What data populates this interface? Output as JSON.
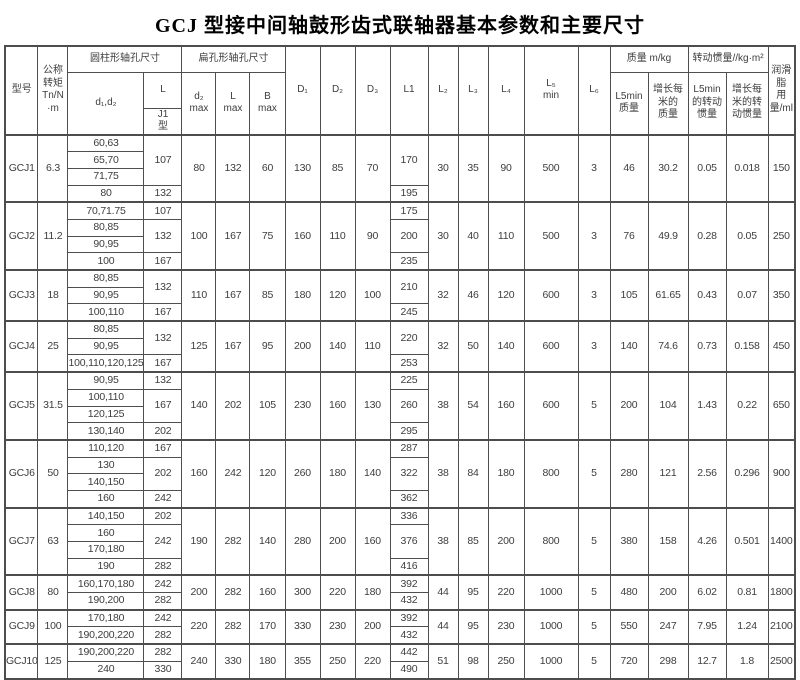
{
  "title": "GCJ 型接中间轴鼓形齿式联轴器基本参数和主要尺寸",
  "table": {
    "header": {
      "model": "型号",
      "torque": "公称\n转矩\nTn/N\n·m",
      "cyl_group": "圆柱形轴孔尺寸",
      "flat_group": "扁孔形轴孔尺寸",
      "d1d2": "d₁,d₂",
      "L": "L",
      "J1": "J1\n型",
      "d2max": "d₂\nmax",
      "Lmax": "L\nmax",
      "Bmax": "B\nmax",
      "D1": "D₁",
      "D2": "D₂",
      "D3": "D₃",
      "L1": "L1",
      "L2": "L₂",
      "L3": "L₃",
      "L4": "L₄",
      "L5min": "L₅\nmin",
      "L6": "L₆",
      "mass_group": "质量 m/kg",
      "inertia_group": "转动惯量//kg·m²",
      "mass_L5min": "L5min\n质量",
      "mass_per_m": "增长每\n米的\n质量",
      "inertia_L5min": "L5min\n的转动\n惯量",
      "inertia_per_m": "增长每\n米的转\n动惯量",
      "grease": "润滑脂\n用量/ml"
    },
    "groups": [
      {
        "model": "GCJ1",
        "torque": "6.3",
        "bore_rows": [
          {
            "d": "60,63"
          },
          {
            "d": "65,70"
          },
          {
            "d": "71,75"
          },
          {
            "d": "80"
          }
        ],
        "L_spans": [
          {
            "v": "107",
            "r": 3
          },
          {
            "v": "132",
            "r": 1
          }
        ],
        "L1_spans": [
          {
            "v": "170",
            "r": 3
          },
          {
            "v": "195",
            "r": 1
          }
        ],
        "merged": {
          "d2max": "80",
          "Lmax": "132",
          "Bmax": "60",
          "D1": "130",
          "D2": "85",
          "D3": "70",
          "L2": "30",
          "L3": "35",
          "L4": "90",
          "L5min": "500",
          "L6": "3",
          "mass_L5min": "46",
          "mass_per_m": "30.2",
          "inertia_L5min": "0.05",
          "inertia_per_m": "0.018",
          "grease": "150"
        }
      },
      {
        "model": "GCJ2",
        "torque": "11.2",
        "bore_rows": [
          {
            "d": "70,71.75"
          },
          {
            "d": "80,85"
          },
          {
            "d": "90,95"
          },
          {
            "d": "100"
          }
        ],
        "L_spans": [
          {
            "v": "107",
            "r": 1
          },
          {
            "v": "132",
            "r": 2
          },
          {
            "v": "167",
            "r": 1
          }
        ],
        "L1_spans": [
          {
            "v": "175",
            "r": 1
          },
          {
            "v": "200",
            "r": 2
          },
          {
            "v": "235",
            "r": 1
          }
        ],
        "merged": {
          "d2max": "100",
          "Lmax": "167",
          "Bmax": "75",
          "D1": "160",
          "D2": "110",
          "D3": "90",
          "L2": "30",
          "L3": "40",
          "L4": "110",
          "L5min": "500",
          "L6": "3",
          "mass_L5min": "76",
          "mass_per_m": "49.9",
          "inertia_L5min": "0.28",
          "inertia_per_m": "0.05",
          "grease": "250"
        }
      },
      {
        "model": "GCJ3",
        "torque": "18",
        "bore_rows": [
          {
            "d": "80,85"
          },
          {
            "d": "90,95"
          },
          {
            "d": "100,110"
          }
        ],
        "L_spans": [
          {
            "v": "132",
            "r": 2
          },
          {
            "v": "167",
            "r": 1
          }
        ],
        "L1_spans": [
          {
            "v": "210",
            "r": 2
          },
          {
            "v": "245",
            "r": 1
          }
        ],
        "merged": {
          "d2max": "110",
          "Lmax": "167",
          "Bmax": "85",
          "D1": "180",
          "D2": "120",
          "D3": "100",
          "L2": "32",
          "L3": "46",
          "L4": "120",
          "L5min": "600",
          "L6": "3",
          "mass_L5min": "105",
          "mass_per_m": "61.65",
          "inertia_L5min": "0.43",
          "inertia_per_m": "0.07",
          "grease": "350"
        }
      },
      {
        "model": "GCJ4",
        "torque": "25",
        "bore_rows": [
          {
            "d": "80,85"
          },
          {
            "d": "90,95"
          },
          {
            "d": "100,110,120,125"
          }
        ],
        "L_spans": [
          {
            "v": "132",
            "r": 2
          },
          {
            "v": "167",
            "r": 1
          }
        ],
        "L1_spans": [
          {
            "v": "220",
            "r": 2
          },
          {
            "v": "253",
            "r": 1
          }
        ],
        "merged": {
          "d2max": "125",
          "Lmax": "167",
          "Bmax": "95",
          "D1": "200",
          "D2": "140",
          "D3": "110",
          "L2": "32",
          "L3": "50",
          "L4": "140",
          "L5min": "600",
          "L6": "3",
          "mass_L5min": "140",
          "mass_per_m": "74.6",
          "inertia_L5min": "0.73",
          "inertia_per_m": "0.158",
          "grease": "450"
        }
      },
      {
        "model": "GCJ5",
        "torque": "31.5",
        "bore_rows": [
          {
            "d": "90,95"
          },
          {
            "d": "100,110"
          },
          {
            "d": "120,125"
          },
          {
            "d": "130,140"
          }
        ],
        "L_spans": [
          {
            "v": "132",
            "r": 1
          },
          {
            "v": "167",
            "r": 2
          },
          {
            "v": "202",
            "r": 1
          }
        ],
        "L1_spans": [
          {
            "v": "225",
            "r": 1
          },
          {
            "v": "260",
            "r": 2
          },
          {
            "v": "295",
            "r": 1
          }
        ],
        "merged": {
          "d2max": "140",
          "Lmax": "202",
          "Bmax": "105",
          "D1": "230",
          "D2": "160",
          "D3": "130",
          "L2": "38",
          "L3": "54",
          "L4": "160",
          "L5min": "600",
          "L6": "5",
          "mass_L5min": "200",
          "mass_per_m": "104",
          "inertia_L5min": "1.43",
          "inertia_per_m": "0.22",
          "grease": "650"
        }
      },
      {
        "model": "GCJ6",
        "torque": "50",
        "bore_rows": [
          {
            "d": "110,120"
          },
          {
            "d": "130"
          },
          {
            "d": "140,150"
          },
          {
            "d": "160"
          }
        ],
        "L_spans": [
          {
            "v": "167",
            "r": 1
          },
          {
            "v": "202",
            "r": 2
          },
          {
            "v": "242",
            "r": 1
          }
        ],
        "L1_spans": [
          {
            "v": "287",
            "r": 1
          },
          {
            "v": "322",
            "r": 2
          },
          {
            "v": "362",
            "r": 1
          }
        ],
        "merged": {
          "d2max": "160",
          "Lmax": "242",
          "Bmax": "120",
          "D1": "260",
          "D2": "180",
          "D3": "140",
          "L2": "38",
          "L3": "84",
          "L4": "180",
          "L5min": "800",
          "L6": "5",
          "mass_L5min": "280",
          "mass_per_m": "121",
          "inertia_L5min": "2.56",
          "inertia_per_m": "0.296",
          "grease": "900"
        }
      },
      {
        "model": "GCJ7",
        "torque": "63",
        "bore_rows": [
          {
            "d": "140,150"
          },
          {
            "d": "160"
          },
          {
            "d": "170,180"
          },
          {
            "d": "190"
          }
        ],
        "L_spans": [
          {
            "v": "202",
            "r": 1
          },
          {
            "v": "242",
            "r": 2
          },
          {
            "v": "282",
            "r": 1
          }
        ],
        "L1_spans": [
          {
            "v": "336",
            "r": 1
          },
          {
            "v": "376",
            "r": 2
          },
          {
            "v": "416",
            "r": 1
          }
        ],
        "merged": {
          "d2max": "190",
          "Lmax": "282",
          "Bmax": "140",
          "D1": "280",
          "D2": "200",
          "D3": "160",
          "L2": "38",
          "L3": "85",
          "L4": "200",
          "L5min": "800",
          "L6": "5",
          "mass_L5min": "380",
          "mass_per_m": "158",
          "inertia_L5min": "4.26",
          "inertia_per_m": "0.501",
          "grease": "1400"
        }
      },
      {
        "model": "GCJ8",
        "torque": "80",
        "bore_rows": [
          {
            "d": "160,170,180"
          },
          {
            "d": "190,200"
          }
        ],
        "L_spans": [
          {
            "v": "242",
            "r": 1
          },
          {
            "v": "282",
            "r": 1
          }
        ],
        "L1_spans": [
          {
            "v": "392",
            "r": 1
          },
          {
            "v": "432",
            "r": 1
          }
        ],
        "merged": {
          "d2max": "200",
          "Lmax": "282",
          "Bmax": "160",
          "D1": "300",
          "D2": "220",
          "D3": "180",
          "L2": "44",
          "L3": "95",
          "L4": "220",
          "L5min": "1000",
          "L6": "5",
          "mass_L5min": "480",
          "mass_per_m": "200",
          "inertia_L5min": "6.02",
          "inertia_per_m": "0.81",
          "grease": "1800"
        }
      },
      {
        "model": "GCJ9",
        "torque": "100",
        "bore_rows": [
          {
            "d": "170,180"
          },
          {
            "d": "190,200,220"
          }
        ],
        "L_spans": [
          {
            "v": "242",
            "r": 1
          },
          {
            "v": "282",
            "r": 1
          }
        ],
        "L1_spans": [
          {
            "v": "392",
            "r": 1
          },
          {
            "v": "432",
            "r": 1
          }
        ],
        "merged": {
          "d2max": "220",
          "Lmax": "282",
          "Bmax": "170",
          "D1": "330",
          "D2": "230",
          "D3": "200",
          "L2": "44",
          "L3": "95",
          "L4": "230",
          "L5min": "1000",
          "L6": "5",
          "mass_L5min": "550",
          "mass_per_m": "247",
          "inertia_L5min": "7.95",
          "inertia_per_m": "1.24",
          "grease": "2100"
        }
      },
      {
        "model": "GCJ10",
        "torque": "125",
        "bore_rows": [
          {
            "d": "190,200,220"
          },
          {
            "d": "240"
          }
        ],
        "L_spans": [
          {
            "v": "282",
            "r": 1
          },
          {
            "v": "330",
            "r": 1
          }
        ],
        "L1_spans": [
          {
            "v": "442",
            "r": 1
          },
          {
            "v": "490",
            "r": 1
          }
        ],
        "merged": {
          "d2max": "240",
          "Lmax": "330",
          "Bmax": "180",
          "D1": "355",
          "D2": "250",
          "D3": "220",
          "L2": "51",
          "L3": "98",
          "L4": "250",
          "L5min": "1000",
          "L6": "5",
          "mass_L5min": "720",
          "mass_per_m": "298",
          "inertia_L5min": "12.7",
          "inertia_per_m": "1.8",
          "grease": "2500"
        }
      }
    ]
  }
}
